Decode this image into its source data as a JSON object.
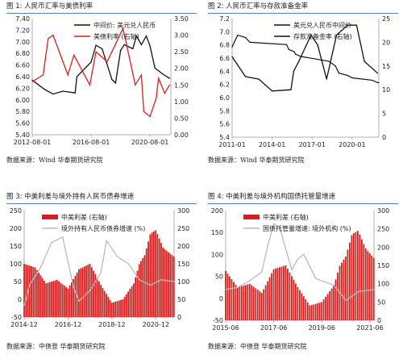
{
  "panels": [
    {
      "caption": "图 1:  人民币汇率与美债利率",
      "source": "数据来源：Wind 华泰期货研究院",
      "chart_data": {
        "type": "line",
        "left_ylim": [
          5.4,
          7.4
        ],
        "left_ticks": [
          "5.40",
          "5.60",
          "5.80",
          "6.00",
          "6.20",
          "6.40",
          "6.60",
          "6.80",
          "7.00",
          "7.20",
          "7.40"
        ],
        "right_ylim": [
          0,
          3.5
        ],
        "right_ticks": [
          "0.00",
          "0.50",
          "1.00",
          "1.50",
          "2.00",
          "2.50",
          "3.00",
          "3.50"
        ],
        "x_range": [
          "2012-08-01",
          "2022-01-01"
        ],
        "x_ticks": [
          "2012-08-01",
          "2016-08-01",
          "2020-08-01"
        ],
        "legend_position": "top-center",
        "series": [
          {
            "name": "中间价: 美元兑人民币",
            "axis": "left",
            "color": "#111111",
            "x": [
              "2012-08-01",
              "2013-06-01",
              "2014-01-01",
              "2014-09-01",
              "2015-07-01",
              "2015-08-15",
              "2016-01-01",
              "2016-08-01",
              "2016-12-01",
              "2017-05-01",
              "2018-01-01",
              "2018-04-01",
              "2018-08-01",
              "2018-11-01",
              "2019-06-01",
              "2019-09-01",
              "2020-01-01",
              "2020-05-01",
              "2020-08-01",
              "2020-12-01",
              "2021-06-01",
              "2021-12-01"
            ],
            "values": [
              6.34,
              6.18,
              6.1,
              6.15,
              6.12,
              6.4,
              6.5,
              6.65,
              6.94,
              6.88,
              6.35,
              6.29,
              6.85,
              6.95,
              6.88,
              7.1,
              6.95,
              7.1,
              6.93,
              6.55,
              6.45,
              6.37
            ]
          },
          {
            "name": "美债利率 (右轴)",
            "axis": "right",
            "color": "#d41f1f",
            "x": [
              "2012-08-01",
              "2013-05-01",
              "2013-09-01",
              "2014-01-01",
              "2015-01-01",
              "2015-06-01",
              "2016-07-01",
              "2016-12-01",
              "2017-09-01",
              "2018-10-01",
              "2019-01-01",
              "2019-08-01",
              "2020-01-01",
              "2020-03-01",
              "2020-08-01",
              "2021-01-01",
              "2021-03-01",
              "2021-08-01",
              "2021-12-01"
            ],
            "values": [
              1.6,
              1.8,
              2.9,
              3.0,
              1.8,
              2.4,
              1.5,
              2.5,
              2.2,
              3.2,
              2.7,
              1.5,
              1.8,
              0.7,
              0.55,
              1.1,
              1.7,
              1.25,
              1.5
            ]
          }
        ]
      }
    },
    {
      "caption": "图 2:  人民币汇率与存款准备金率",
      "source": "数据来源：Wind 华泰期货研究院",
      "chart_data": {
        "type": "line",
        "left_ylim": [
          5.4,
          7.2
        ],
        "left_ticks": [
          "5.4",
          "5.6",
          "5.8",
          "6.0",
          "6.2",
          "6.4",
          "6.6",
          "6.8",
          "7.0",
          "7.2"
        ],
        "right_ylim": [
          0,
          25
        ],
        "right_ticks": [
          "0",
          "5",
          "10",
          "15",
          "20",
          "25"
        ],
        "x_range": [
          "2011-01-01",
          "2022-01-01"
        ],
        "x_ticks": [
          "2011-01",
          "2014-01",
          "2017-01",
          "2020-01"
        ],
        "legend_position": "top-center",
        "series": [
          {
            "name": "美元兑人民币中间价",
            "axis": "left",
            "color": "#111111",
            "x": [
              "2011-01-01",
              "2012-01-01",
              "2013-01-01",
              "2014-01-01",
              "2015-06-01",
              "2015-08-15",
              "2016-01-01",
              "2016-12-01",
              "2017-06-01",
              "2018-02-01",
              "2018-11-01",
              "2019-09-01",
              "2020-05-01",
              "2020-12-01",
              "2021-12-01"
            ],
            "values": [
              6.62,
              6.32,
              6.28,
              6.1,
              6.12,
              6.4,
              6.55,
              6.95,
              6.8,
              6.28,
              6.95,
              7.1,
              7.1,
              6.55,
              6.37
            ]
          },
          {
            "name": "存款准备金率 (右轴)",
            "axis": "right",
            "color": "#111111",
            "x": [
              "2011-01-01",
              "2011-06-01",
              "2012-01-01",
              "2012-05-01",
              "2015-02-01",
              "2015-04-01",
              "2015-09-01",
              "2015-10-01",
              "2016-03-01",
              "2018-04-01",
              "2018-10-01",
              "2019-01-01",
              "2019-09-01",
              "2020-01-01",
              "2021-07-01",
              "2021-12-01",
              "2022-01-01"
            ],
            "values": [
              19.0,
              21.5,
              21.0,
              20.0,
              19.5,
              18.5,
              18.0,
              17.5,
              17.0,
              16.0,
              15.0,
              13.5,
              13.0,
              12.5,
              12.0,
              11.5,
              11.5
            ]
          }
        ]
      }
    },
    {
      "caption": "图 3:  中美利差与境外持有人民币债券增速",
      "source": "数据来源：中债登 华泰期货研究院",
      "chart_data": {
        "type": "bar",
        "left_ylim": [
          -50,
          250
        ],
        "left_ticks": [
          "-50",
          "0",
          "50",
          "100",
          "150",
          "200",
          "250"
        ],
        "right_ylim": [
          0,
          300
        ],
        "right_ticks": [
          "0",
          "50",
          "100",
          "150",
          "200",
          "250",
          "300"
        ],
        "x_range": [
          "2014-12-01",
          "2021-10-01"
        ],
        "x_ticks": [
          "2014-12",
          "2016-12",
          "2018-12",
          "2020-12"
        ],
        "legend_position": "top-center",
        "series": [
          {
            "name": "中美利差 (右轴)",
            "axis": "right",
            "color": "#d41f1f",
            "kind": "bar",
            "x": [
              "2014-12-01",
              "2015-06-01",
              "2015-12-01",
              "2016-06-01",
              "2016-12-01",
              "2017-06-01",
              "2017-12-01",
              "2018-06-01",
              "2018-12-01",
              "2019-06-01",
              "2019-12-01",
              "2020-03-01",
              "2020-06-01",
              "2020-09-01",
              "2020-12-01",
              "2021-04-01",
              "2021-10-01"
            ],
            "values": [
              150,
              140,
              95,
              105,
              80,
              135,
              150,
              90,
              40,
              50,
              95,
              150,
              175,
              235,
              245,
              195,
              170
            ]
          },
          {
            "name": "境外持有人民币债券增速 (%)",
            "axis": "left",
            "color": "#bbbbbb",
            "kind": "line",
            "x": [
              "2014-12-01",
              "2015-03-01",
              "2015-09-01",
              "2016-03-01",
              "2016-09-01",
              "2017-03-01",
              "2017-06-01",
              "2017-12-01",
              "2018-06-01",
              "2018-09-01",
              "2019-03-01",
              "2019-09-01",
              "2020-03-01",
              "2020-09-01",
              "2021-03-01",
              "2021-10-01"
            ],
            "values": [
              -18,
              40,
              90,
              160,
              175,
              35,
              -5,
              25,
              75,
              165,
              120,
              100,
              55,
              40,
              55,
              50
            ]
          }
        ]
      }
    },
    {
      "caption": "图 4:  中美利差与境外机构国债托管量增速",
      "source": "数据来源：中债登 华泰期货研究院",
      "chart_data": {
        "type": "bar",
        "left_ylim": [
          -50,
          200
        ],
        "left_ticks": [
          "-50",
          "0",
          "50",
          "100",
          "150",
          "200"
        ],
        "right_ylim": [
          0,
          300
        ],
        "right_ticks": [
          "0",
          "50",
          "100",
          "150",
          "200",
          "250",
          "300"
        ],
        "x_range": [
          "2015-06-01",
          "2021-08-01"
        ],
        "x_ticks": [
          "2015-06",
          "2017-06",
          "2019-06",
          "2021-06"
        ],
        "legend_position": "top-center",
        "series": [
          {
            "name": "中美利差 (右轴)",
            "axis": "right",
            "color": "#d41f1f",
            "kind": "bar",
            "x": [
              "2015-06-01",
              "2015-12-01",
              "2016-06-01",
              "2016-12-01",
              "2017-06-01",
              "2017-12-01",
              "2018-06-01",
              "2018-12-01",
              "2019-06-01",
              "2019-12-01",
              "2020-03-01",
              "2020-06-01",
              "2020-09-01",
              "2020-12-01",
              "2021-04-01",
              "2021-08-01"
            ],
            "values": [
              135,
              90,
              100,
              75,
              140,
              150,
              90,
              40,
              50,
              95,
              150,
              175,
              235,
              245,
              195,
              170
            ]
          },
          {
            "name": "国债托管量增速: 境外机构 (%)",
            "axis": "left",
            "color": "#bbbbbb",
            "kind": "line",
            "x": [
              "2015-06-01",
              "2015-12-01",
              "2016-06-01",
              "2016-12-01",
              "2017-03-01",
              "2017-06-01",
              "2017-09-01",
              "2018-03-01",
              "2018-06-01",
              "2018-09-01",
              "2019-03-01",
              "2019-06-01",
              "2019-12-01",
              "2020-06-01",
              "2020-12-01",
              "2021-08-01"
            ],
            "values": [
              20,
              25,
              40,
              60,
              120,
              170,
              160,
              65,
              90,
              100,
              45,
              40,
              30,
              -5,
              15,
              20
            ]
          }
        ]
      }
    }
  ]
}
